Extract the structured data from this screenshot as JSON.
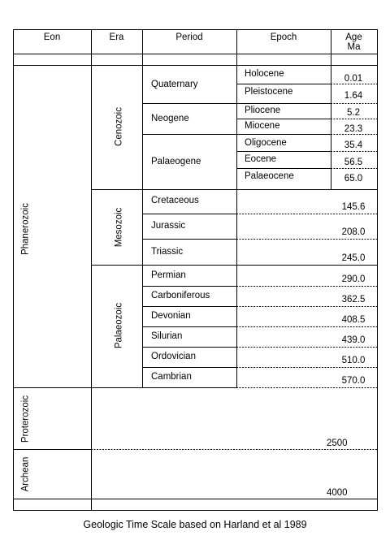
{
  "headers": {
    "eon": "Eon",
    "era": "Era",
    "period": "Period",
    "epoch": "Epoch",
    "age_line1": "Age",
    "age_line2": "Ma"
  },
  "eons": {
    "phanerozoic": "Phanerozoic",
    "proterozoic": "Proterozoic",
    "archean": "Archean"
  },
  "eras": {
    "cenozoic": "Cenozoic",
    "mesozoic": "Mesozoic",
    "palaeozoic": "Palaeozoic"
  },
  "periods": {
    "quaternary": "Quaternary",
    "neogene": "Neogene",
    "palaeogene": "Palaeogene",
    "cretaceous": "Cretaceous",
    "jurassic": "Jurassic",
    "triassic": "Triassic",
    "permian": "Permian",
    "carboniferous": "Carboniferous",
    "devonian": "Devonian",
    "silurian": "Silurian",
    "ordovician": "Ordovician",
    "cambrian": "Cambrian"
  },
  "epochs": {
    "holocene": "Holocene",
    "pleistocene": "Pleistocene",
    "pliocene": "Pliocene",
    "miocene": "Miocene",
    "oligocene": "Oligocene",
    "eocene": "Eocene",
    "palaeocene": "Palaeocene"
  },
  "ages": {
    "holocene": "0.01",
    "pleistocene": "1.64",
    "pliocene": "5.2",
    "miocene": "23.3",
    "oligocene": "35.4",
    "eocene": "56.5",
    "palaeocene": "65.0",
    "cretaceous": "145.6",
    "jurassic": "208.0",
    "triassic": "245.0",
    "permian": "290.0",
    "carboniferous": "362.5",
    "devonian": "408.5",
    "silurian": "439.0",
    "ordovician": "510.0",
    "cambrian": "570.0",
    "proterozoic": "2500",
    "archean": "4000"
  },
  "caption": "Geologic Time Scale based on Harland et al 1989"
}
